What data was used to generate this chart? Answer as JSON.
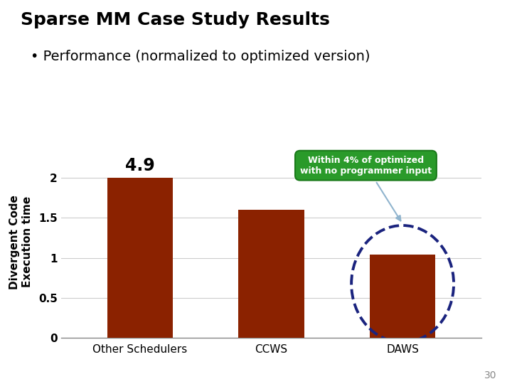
{
  "title": "Sparse MM Case Study Results",
  "subtitle": "• Performance (normalized to optimized version)",
  "categories": [
    "Other Schedulers",
    "CCWS",
    "DAWS"
  ],
  "values": [
    2.0,
    1.6,
    1.04
  ],
  "bar_color": "#8B2200",
  "bar_annotation": "4.9",
  "annotation_bar_index": 0,
  "ylabel_line1": "Divergent Code",
  "ylabel_line2": "Execution time",
  "yticks": [
    0,
    0.5,
    1,
    1.5,
    2
  ],
  "ytick_labels": [
    "0",
    "0.5",
    "1",
    "1.5",
    "2"
  ],
  "ylim": [
    0,
    2.4
  ],
  "callout_text": "Within 4% of optimized\nwith no programmer input",
  "callout_bg": "#2a9a2a",
  "callout_text_color": "#ffffff",
  "dashed_circle_color": "#1a237e",
  "arrow_color": "#90b4ce",
  "page_number": "30",
  "bg_color": "#ffffff",
  "title_fontsize": 18,
  "subtitle_fontsize": 14,
  "tick_fontsize": 11,
  "xlabel_fontsize": 11
}
